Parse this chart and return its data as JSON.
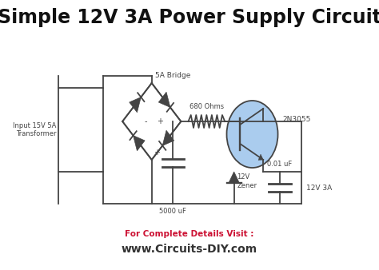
{
  "title": "Simple 12V 3A Power Supply Circuit",
  "title_fontsize": 17,
  "title_fontweight": "bold",
  "footer_line1": "For Complete Details Visit :",
  "footer_line2": "www.Circuits-DIY.com",
  "footer_color1": "#cc1133",
  "footer_color2": "#333333",
  "bg_color": "#ffffff",
  "circuit_color": "#444444",
  "transistor_fill": "#aaccee",
  "label_transformer": "Input 15V 5A\nTransformer",
  "label_bridge": "5A Bridge",
  "label_resistor": "680 Ohms",
  "label_transistor": "2N3055",
  "label_cap1": "5000 uF",
  "label_zener_v": "12V",
  "label_zener_n": "Zener",
  "label_cap2": "0.01 uF",
  "label_output": "12V 3A",
  "label_plus_cap": "+",
  "label_minus_bridge": "-",
  "label_plus_bridge": "+"
}
